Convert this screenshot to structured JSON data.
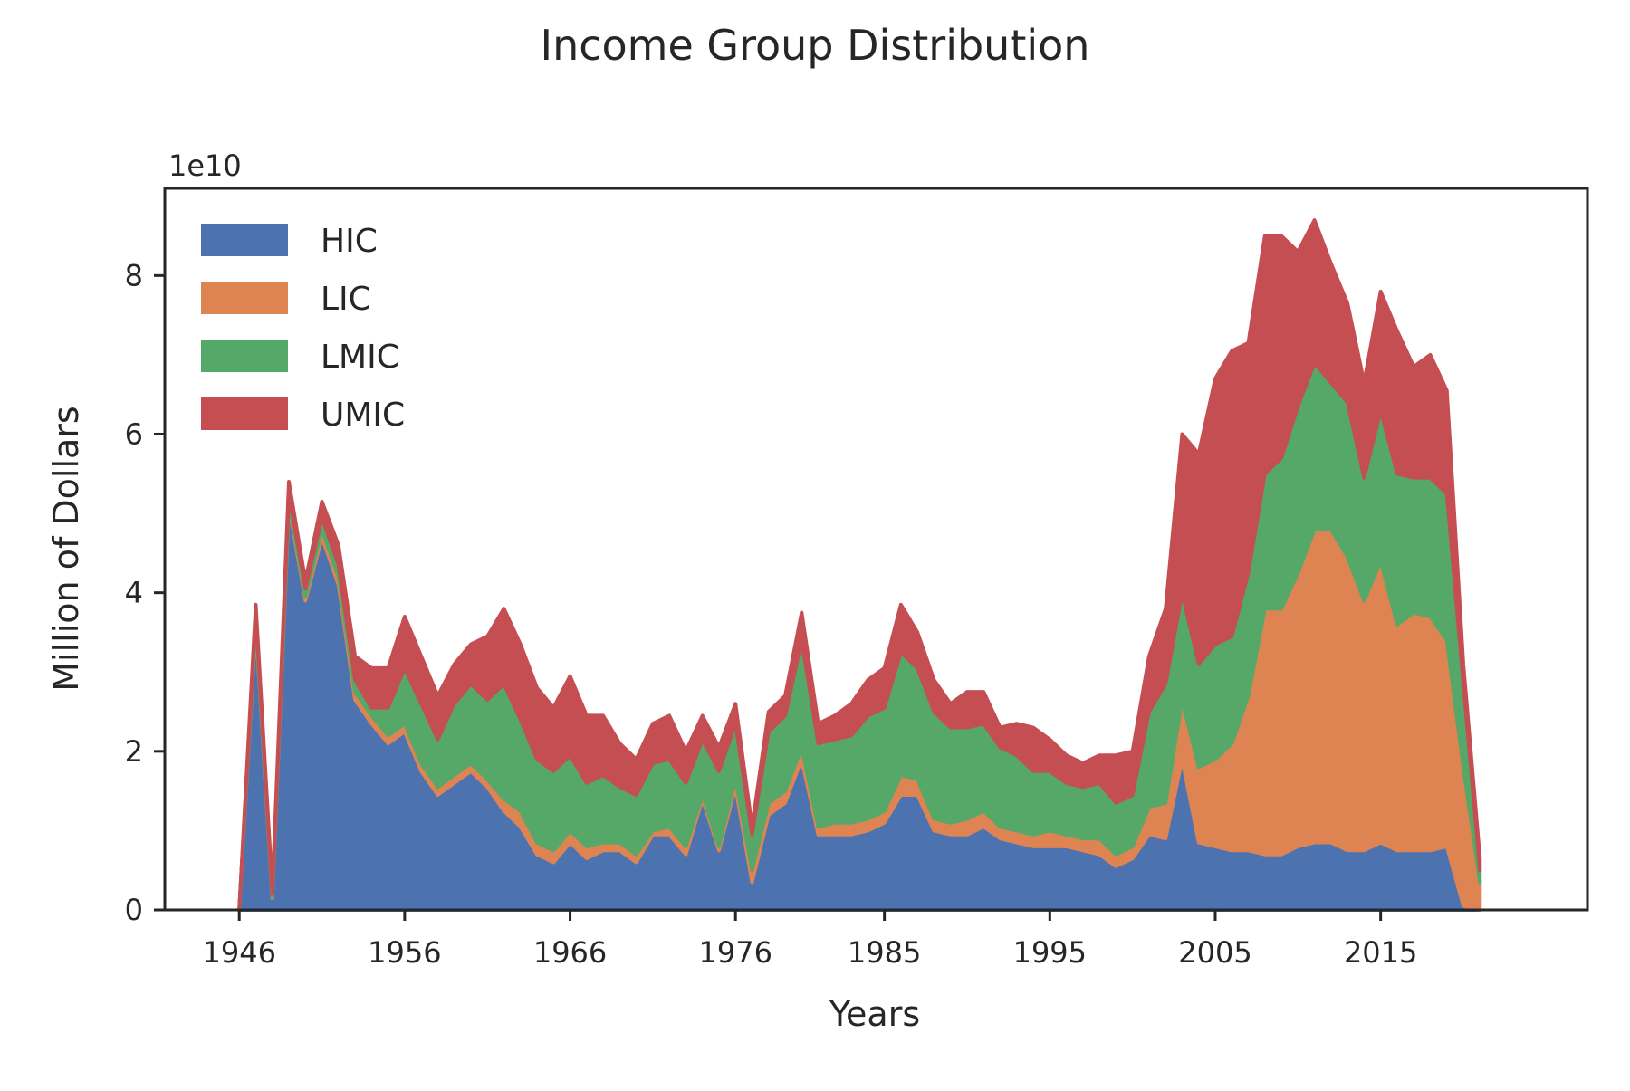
{
  "chart_data": {
    "type": "area",
    "stacked": true,
    "title": "Income Group Distribution",
    "xlabel": "Years",
    "ylabel": "Million of Dollars",
    "y_offset_label": "1e10",
    "xlim": [
      1941.5,
      2027.5
    ],
    "ylim": [
      0,
      9.1
    ],
    "x_ticks": [
      1946,
      1956,
      1966,
      1976,
      1985,
      1995,
      2005,
      2015
    ],
    "x_tick_labels": [
      "1946",
      "1956",
      "1966",
      "1976",
      "1985",
      "1995",
      "2005",
      "2015"
    ],
    "y_ticks": [
      0,
      2,
      4,
      6,
      8
    ],
    "y_tick_labels": [
      "0",
      "2",
      "4",
      "6",
      "8"
    ],
    "grid": false,
    "legend_position": "top-left",
    "x": [
      1946,
      1947,
      1948,
      1949,
      1950,
      1951,
      1952,
      1953,
      1954,
      1955,
      1956,
      1957,
      1958,
      1959,
      1960,
      1961,
      1962,
      1963,
      1964,
      1965,
      1966,
      1967,
      1968,
      1969,
      1970,
      1971,
      1972,
      1973,
      1974,
      1975,
      1976,
      1977,
      1978,
      1979,
      1980,
      1981,
      1982,
      1983,
      1984,
      1985,
      1986,
      1987,
      1988,
      1989,
      1990,
      1991,
      1992,
      1993,
      1994,
      1995,
      1996,
      1997,
      1998,
      1999,
      2000,
      2001,
      2002,
      2003,
      2004,
      2005,
      2006,
      2007,
      2008,
      2009,
      2010,
      2011,
      2012,
      2013,
      2014,
      2015,
      2016,
      2017,
      2018,
      2019,
      2020,
      2021
    ],
    "series": [
      {
        "name": "HIC",
        "color": "#4c72b0",
        "values": [
          0.0,
          3.6,
          0.15,
          5.1,
          3.9,
          4.7,
          4.1,
          2.65,
          2.35,
          2.1,
          2.25,
          1.75,
          1.45,
          1.6,
          1.75,
          1.55,
          1.25,
          1.05,
          0.7,
          0.6,
          0.85,
          0.65,
          0.75,
          0.75,
          0.6,
          0.95,
          0.95,
          0.7,
          1.4,
          0.75,
          1.55,
          0.35,
          1.2,
          1.35,
          1.9,
          0.95,
          0.95,
          0.95,
          1.0,
          1.1,
          1.45,
          1.45,
          1.0,
          0.95,
          0.95,
          1.05,
          0.9,
          0.85,
          0.8,
          0.8,
          0.8,
          0.75,
          0.7,
          0.55,
          0.65,
          0.95,
          0.9,
          1.9,
          0.85,
          0.8,
          0.75,
          0.75,
          0.7,
          0.7,
          0.8,
          0.85,
          0.85,
          0.75,
          0.75,
          0.85,
          0.75,
          0.75,
          0.75,
          0.8,
          0.05,
          0.0
        ]
      },
      {
        "name": "LIC",
        "color": "#dd8452",
        "values": [
          0.0,
          0.05,
          0.02,
          0.05,
          0.05,
          0.1,
          0.1,
          0.1,
          0.1,
          0.1,
          0.1,
          0.1,
          0.1,
          0.1,
          0.1,
          0.1,
          0.15,
          0.2,
          0.15,
          0.15,
          0.15,
          0.15,
          0.1,
          0.1,
          0.1,
          0.05,
          0.1,
          0.1,
          0.05,
          0.05,
          0.1,
          0.15,
          0.15,
          0.15,
          0.15,
          0.1,
          0.15,
          0.15,
          0.15,
          0.15,
          0.25,
          0.2,
          0.15,
          0.15,
          0.2,
          0.2,
          0.15,
          0.15,
          0.15,
          0.2,
          0.15,
          0.15,
          0.2,
          0.15,
          0.15,
          0.35,
          0.45,
          0.75,
          0.95,
          1.1,
          1.35,
          1.95,
          3.1,
          3.1,
          3.45,
          3.95,
          3.95,
          3.7,
          3.15,
          3.55,
          2.85,
          3.0,
          2.95,
          2.6,
          1.75,
          0.35
        ]
      },
      {
        "name": "LMIC",
        "color": "#55a868",
        "values": [
          0.0,
          0.1,
          0.03,
          0.1,
          0.1,
          0.15,
          0.15,
          0.15,
          0.1,
          0.35,
          0.7,
          0.75,
          0.6,
          0.9,
          1.0,
          1.0,
          1.45,
          1.15,
          1.05,
          1.0,
          0.95,
          0.8,
          0.85,
          0.7,
          0.75,
          0.85,
          0.85,
          0.8,
          0.7,
          0.95,
          0.7,
          0.45,
          0.9,
          0.95,
          1.35,
          1.05,
          1.05,
          1.1,
          1.3,
          1.3,
          1.55,
          1.4,
          1.35,
          1.2,
          1.15,
          1.1,
          1.0,
          0.95,
          0.8,
          0.75,
          0.65,
          0.65,
          0.7,
          0.65,
          0.65,
          1.2,
          1.5,
          1.35,
          1.3,
          1.45,
          1.35,
          1.55,
          1.7,
          1.9,
          2.1,
          2.1,
          1.85,
          1.95,
          1.55,
          1.9,
          1.9,
          1.7,
          1.75,
          1.85,
          1.05,
          0.15
        ]
      },
      {
        "name": "UMIC",
        "color": "#c44e52",
        "values": [
          0.0,
          0.1,
          0.05,
          0.15,
          0.1,
          0.2,
          0.25,
          0.3,
          0.5,
          0.5,
          0.65,
          0.6,
          0.55,
          0.5,
          0.5,
          0.8,
          0.95,
          0.95,
          0.9,
          0.8,
          1.0,
          0.85,
          0.75,
          0.55,
          0.45,
          0.5,
          0.55,
          0.4,
          0.3,
          0.3,
          0.25,
          0.1,
          0.25,
          0.25,
          0.35,
          0.25,
          0.3,
          0.4,
          0.45,
          0.5,
          0.6,
          0.45,
          0.4,
          0.3,
          0.45,
          0.4,
          0.25,
          0.4,
          0.55,
          0.4,
          0.35,
          0.3,
          0.35,
          0.6,
          0.55,
          0.7,
          0.95,
          2.0,
          2.65,
          3.35,
          3.6,
          2.9,
          3.0,
          2.8,
          1.95,
          1.8,
          1.5,
          1.25,
          1.2,
          1.5,
          1.8,
          1.4,
          1.55,
          1.3,
          0.25,
          0.15
        ]
      }
    ]
  }
}
